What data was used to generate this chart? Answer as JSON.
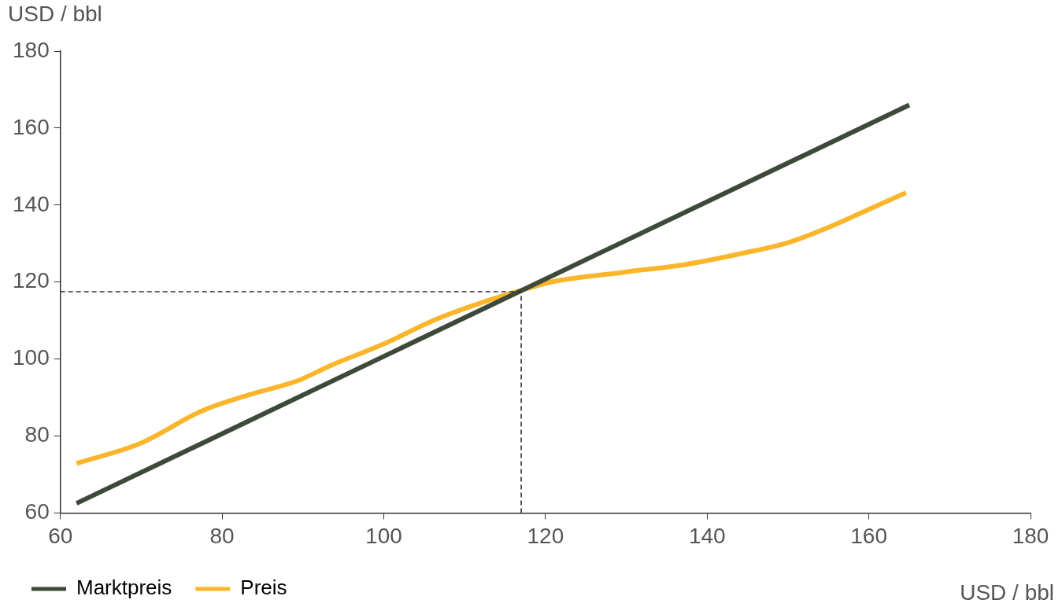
{
  "chart_data": {
    "type": "line",
    "xlabel": "USD / bbl",
    "ylabel": "USD / bbl",
    "xlim": [
      60,
      180
    ],
    "xticks": [
      60,
      80,
      100,
      120,
      140,
      160,
      180
    ],
    "ylim": [
      60,
      180
    ],
    "yticks": [
      60,
      80,
      100,
      120,
      140,
      160,
      180
    ],
    "grid": false,
    "legend": "bottom left",
    "marker": "none",
    "line_style": "solid",
    "series": [
      {
        "name": "Marktpreis",
        "color": "#3d4a3a",
        "x": [
          62,
          165
        ],
        "values": [
          62.5,
          166
        ]
      },
      {
        "name": "Preis",
        "color": "#fbb52b",
        "x": [
          62,
          69.8,
          77.6,
          83.5,
          89.4,
          93.3,
          100.2,
          106,
          111.9,
          116.8,
          120.7,
          129.5,
          137.4,
          144.2,
          150.1,
          155,
          159.9,
          164.6
        ],
        "values": [
          72.9,
          78,
          86.6,
          90.8,
          94.4,
          98.2,
          104.1,
          109.9,
          114.5,
          117.7,
          120,
          122.5,
          124.6,
          127.4,
          130.3,
          134.2,
          138.8,
          143.2
        ]
      }
    ],
    "ref_lines": [
      {
        "axis": "x",
        "value": 117,
        "line_style": "dashed",
        "color": "#333333"
      },
      {
        "axis": "y",
        "value": 117.5,
        "line_style": "dashed",
        "color": "#333333"
      }
    ]
  }
}
